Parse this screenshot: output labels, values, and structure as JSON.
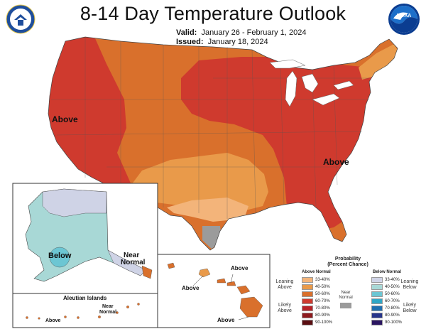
{
  "header": {
    "title": "8-14 Day Temperature Outlook",
    "valid_label": "Valid:",
    "valid_value": "January 26 - February 1, 2024",
    "issued_label": "Issued:",
    "issued_value": "January 18, 2024",
    "noaa_logo_text": "NOAA"
  },
  "map_labels": {
    "west": "Above",
    "east": "Above",
    "alaska_below": "Below",
    "alaska_near": "Near",
    "alaska_normal": "Normal",
    "aleutian_title": "Aleutian Islands",
    "aleutian_near": "Near",
    "aleutian_normal": "Normal",
    "aleutian_above": "Above",
    "hawaii_above_1": "Above",
    "hawaii_above_2": "Above",
    "hawaii_above_3": "Above"
  },
  "legend": {
    "title_1": "Probability",
    "title_2": "(Percent Chance)",
    "above_header": "Above Normal",
    "below_header": "Below Normal",
    "near_1": "Near",
    "near_2": "Normal",
    "leaning_above_1": "Leaning",
    "leaning_above_2": "Above",
    "likely_above_1": "Likely",
    "likely_above_2": "Above",
    "leaning_below_1": "Leaning",
    "leaning_below_2": "Below",
    "likely_below_1": "Likely",
    "likely_below_2": "Below",
    "above": [
      {
        "range": "33-40%",
        "color": "#f3b47a"
      },
      {
        "range": "40-50%",
        "color": "#e99a4a"
      },
      {
        "range": "50-60%",
        "color": "#d9702c"
      },
      {
        "range": "60-70%",
        "color": "#cf3a2e"
      },
      {
        "range": "70-80%",
        "color": "#b82126"
      },
      {
        "range": "80-90%",
        "color": "#8e1a1e"
      },
      {
        "range": "90-100%",
        "color": "#5a0e12"
      }
    ],
    "below": [
      {
        "range": "33-40%",
        "color": "#cfd3e6"
      },
      {
        "range": "40-50%",
        "color": "#a8d8d6"
      },
      {
        "range": "50-60%",
        "color": "#6cc6d3"
      },
      {
        "range": "60-70%",
        "color": "#2fa7c6"
      },
      {
        "range": "70-80%",
        "color": "#1f6fb0"
      },
      {
        "range": "80-90%",
        "color": "#27358a"
      },
      {
        "range": "90-100%",
        "color": "#2a1560"
      }
    ],
    "near_color": "#9b9b9b"
  }
}
